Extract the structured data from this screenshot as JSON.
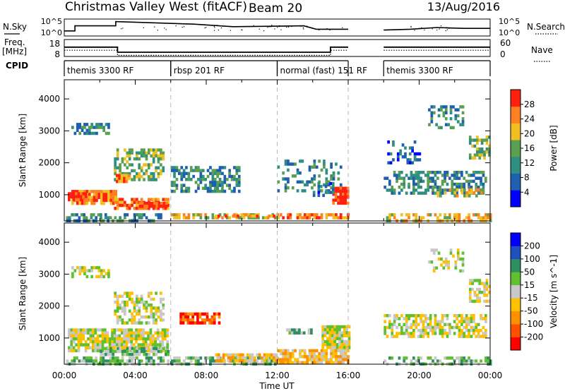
{
  "header": {
    "title": "Christmas Valley West (fitACF)",
    "beam": "Beam 20",
    "date": "13/Aug/2016"
  },
  "labels": {
    "nsky": "N.Sky",
    "nsearch": "N.Search",
    "freq_line1": "Freq.",
    "freq_line2": "[MHz]",
    "nave": "Nave",
    "cpid": "CPID"
  },
  "ticks": {
    "nsky_left": [
      "10^5",
      "10^0"
    ],
    "nsky_right": [
      "10^5",
      "10^0"
    ],
    "freq_left": [
      "18",
      "8"
    ],
    "freq_right": [
      "60",
      "0"
    ]
  },
  "cpid_modes": [
    {
      "label": "themis 3300 RF",
      "start": 0,
      "end": 6
    },
    {
      "label": "rbsp 201 RF",
      "start": 6,
      "end": 12
    },
    {
      "label": "normal (fast) 151 RF",
      "start": 12,
      "end": 16
    },
    {
      "label": "themis 3300 RF",
      "start": 18,
      "end": 24
    }
  ],
  "chart_data": [
    {
      "type": "line",
      "name": "N.Sky / N.Search",
      "ylabel": "N.Sky",
      "y2label": "N.Search",
      "xlim": [
        0,
        24
      ],
      "segments": [
        {
          "x": [
            0,
            0.6,
            0.6,
            2.9,
            2.9,
            7.3,
            9.5,
            13.5,
            14.2,
            16.0
          ],
          "y": [
            0.3,
            0.3,
            0.6,
            0.6,
            0.85,
            0.7,
            0.55,
            0.6,
            0.4,
            0.4
          ]
        },
        {
          "x": [
            18.0,
            19.5,
            21.0,
            22.5,
            24.0
          ],
          "y": [
            0.35,
            0.4,
            0.5,
            0.45,
            0.45
          ]
        }
      ]
    },
    {
      "type": "line",
      "name": "Freq / Nave",
      "ylabel": "Freq. [MHz]",
      "y2label": "Nave",
      "ylim": [
        8,
        18
      ],
      "y2lim": [
        0,
        60
      ],
      "freq": {
        "x": [
          0,
          16,
          18,
          24
        ],
        "segments": [
          [
            [
              0,
              13.5
            ],
            [
              3,
              13.5
            ],
            [
              3,
              10.5
            ],
            [
              15,
              10.5
            ],
            [
              15,
              13.5
            ],
            [
              16,
              13.5
            ]
          ],
          [
            [
              18,
              13.5
            ],
            [
              24,
              13.5
            ]
          ]
        ]
      },
      "nave": {
        "segments": [
          [
            [
              0,
              22
            ],
            [
              3,
              22
            ],
            [
              3,
              4
            ],
            [
              15,
              4
            ],
            [
              15,
              22
            ],
            [
              16,
              22
            ]
          ],
          [
            [
              18,
              22
            ],
            [
              24,
              22
            ]
          ]
        ]
      }
    },
    {
      "type": "heatmap",
      "name": "Power",
      "ylabel": "Slant Range [km]",
      "colorbar_label": "Power [dB]",
      "colorbar_ticks": [
        "28",
        "24",
        "20",
        "16",
        "12",
        "8",
        "4"
      ],
      "colors": [
        "#0000ff",
        "#1f5fb0",
        "#2f8f80",
        "#5aa050",
        "#f0c020",
        "#ff8020",
        "#ff2010"
      ],
      "xlim": [
        0,
        24
      ],
      "ylim": [
        180,
        4600
      ],
      "yticks": [
        1000,
        2000,
        3000,
        4000
      ],
      "regions": [
        {
          "t0": 0.1,
          "t1": 5.9,
          "r0": 220,
          "r1": 420,
          "c": 2,
          "d": 0.55
        },
        {
          "t0": 0.4,
          "t1": 2.9,
          "r0": 720,
          "r1": 1150,
          "c": 5,
          "d": 0.9
        },
        {
          "t0": 0.2,
          "t1": 1.3,
          "r0": 880,
          "r1": 1080,
          "c": 6,
          "d": 0.85
        },
        {
          "t0": 2.8,
          "t1": 5.8,
          "r0": 600,
          "r1": 900,
          "c": 5,
          "d": 0.75
        },
        {
          "t0": 4.2,
          "t1": 5.7,
          "r0": 600,
          "r1": 780,
          "c": 6,
          "d": 0.9
        },
        {
          "t0": 0.4,
          "t1": 2.5,
          "r0": 2950,
          "r1": 3250,
          "c": 2,
          "d": 0.55
        },
        {
          "t0": 2.8,
          "t1": 5.6,
          "r0": 1450,
          "r1": 2450,
          "c": 3,
          "d": 0.55
        },
        {
          "t0": 2.9,
          "t1": 3.6,
          "r0": 1450,
          "r1": 1650,
          "c": 5,
          "d": 0.8
        },
        {
          "t0": 6.0,
          "t1": 9.8,
          "r0": 1100,
          "r1": 1900,
          "c": 2,
          "d": 0.55
        },
        {
          "t0": 6.0,
          "t1": 12.0,
          "r0": 260,
          "r1": 420,
          "c": 4,
          "d": 0.65
        },
        {
          "t0": 8.5,
          "t1": 11.8,
          "r0": 300,
          "r1": 380,
          "c": 5,
          "d": 0.6
        },
        {
          "t0": 12.0,
          "t1": 16.0,
          "r0": 250,
          "r1": 420,
          "c": 5,
          "d": 0.7
        },
        {
          "t0": 12.0,
          "t1": 15.6,
          "r0": 1100,
          "r1": 2100,
          "c": 2,
          "d": 0.3
        },
        {
          "t0": 15.1,
          "t1": 16.0,
          "r0": 780,
          "r1": 1250,
          "c": 6,
          "d": 0.9
        },
        {
          "t0": 14.0,
          "t1": 15.2,
          "r0": 900,
          "r1": 1400,
          "c": 1,
          "d": 0.35
        },
        {
          "t0": 18.0,
          "t1": 24.0,
          "r0": 230,
          "r1": 420,
          "c": 4,
          "d": 0.5
        },
        {
          "t0": 18.0,
          "t1": 23.8,
          "r0": 1100,
          "r1": 1750,
          "c": 2,
          "d": 0.55
        },
        {
          "t0": 21.0,
          "t1": 23.5,
          "r0": 950,
          "r1": 1200,
          "c": 4,
          "d": 0.55
        },
        {
          "t0": 22.8,
          "t1": 24.0,
          "r0": 2200,
          "r1": 2850,
          "c": 3,
          "d": 0.6
        },
        {
          "t0": 20.5,
          "t1": 22.5,
          "r0": 3100,
          "r1": 3800,
          "c": 2,
          "d": 0.35
        },
        {
          "t0": 18.2,
          "t1": 20.0,
          "r0": 2000,
          "r1": 2700,
          "c": 1,
          "d": 0.3
        }
      ]
    },
    {
      "type": "heatmap",
      "name": "Velocity",
      "ylabel": "Slant Range [km]",
      "colorbar_label": "Velocity [m s^-1]",
      "colorbar_ticks": [
        "200",
        "100",
        "50",
        "15",
        "-15",
        "-50",
        "-100",
        "-200"
      ],
      "colors": [
        "#ff0000",
        "#ff5000",
        "#ff9000",
        "#ffc000",
        "#c8c8c8",
        "#60c030",
        "#2f8f60",
        "#2050c0",
        "#0000ff"
      ],
      "xlim": [
        0,
        24
      ],
      "ylim": [
        180,
        4600
      ],
      "yticks": [
        1000,
        2000,
        3000,
        4000
      ],
      "regions": [
        {
          "t0": 0.1,
          "t1": 5.9,
          "r0": 220,
          "r1": 420,
          "c": 5,
          "d": 0.6
        },
        {
          "t0": 0.2,
          "t1": 5.8,
          "r0": 600,
          "r1": 1300,
          "c": 4,
          "d": 0.8
        },
        {
          "t0": 0.4,
          "t1": 2.5,
          "r0": 2950,
          "r1": 3250,
          "c": 4,
          "d": 0.55
        },
        {
          "t0": 2.8,
          "t1": 5.6,
          "r0": 1450,
          "r1": 2450,
          "c": 4,
          "d": 0.55
        },
        {
          "t0": 2.0,
          "t1": 5.8,
          "r0": 520,
          "r1": 720,
          "c": 5,
          "d": 0.75
        },
        {
          "t0": 6.5,
          "t1": 8.8,
          "r0": 1450,
          "r1": 1800,
          "c": 1,
          "d": 0.8
        },
        {
          "t0": 6.0,
          "t1": 12.0,
          "r0": 220,
          "r1": 420,
          "c": 5,
          "d": 0.6
        },
        {
          "t0": 8.5,
          "t1": 12.0,
          "r0": 250,
          "r1": 520,
          "c": 3,
          "d": 0.7
        },
        {
          "t0": 12.0,
          "t1": 16.0,
          "r0": 250,
          "r1": 650,
          "c": 3,
          "d": 0.85
        },
        {
          "t0": 14.5,
          "t1": 16.0,
          "r0": 700,
          "r1": 1400,
          "c": 4,
          "d": 0.9
        },
        {
          "t0": 12.5,
          "t1": 14.0,
          "r0": 1150,
          "r1": 1300,
          "c": 5,
          "d": 0.6
        },
        {
          "t0": 18.0,
          "t1": 24.0,
          "r0": 230,
          "r1": 420,
          "c": 5,
          "d": 0.5
        },
        {
          "t0": 18.0,
          "t1": 23.8,
          "r0": 1100,
          "r1": 1750,
          "c": 4,
          "d": 0.6
        },
        {
          "t0": 22.8,
          "t1": 24.0,
          "r0": 2200,
          "r1": 2850,
          "c": 4,
          "d": 0.6
        },
        {
          "t0": 20.5,
          "t1": 22.5,
          "r0": 3100,
          "r1": 3800,
          "c": 4,
          "d": 0.3
        }
      ]
    }
  ],
  "xaxis": {
    "label": "Time UT",
    "ticks": [
      "00:00",
      "04:00",
      "08:00",
      "12:00",
      "16:00",
      "20:00",
      "00:00"
    ]
  }
}
